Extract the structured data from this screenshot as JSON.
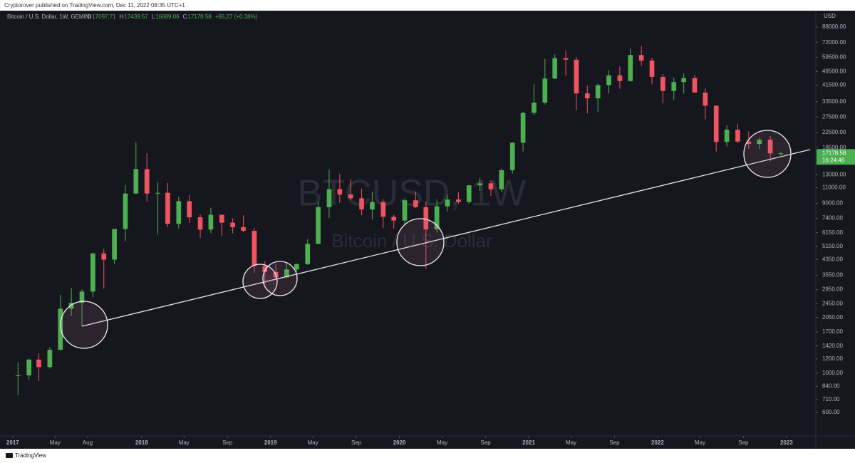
{
  "header": {
    "publisher": "Cryptorover published on TradingView.com, Dec 11, 2022 08:35 UTC+1"
  },
  "legend": {
    "symbol": "Bitcoin / U.S. Dollar, 1W, GEMINI",
    "ohlc": [
      {
        "key": "O",
        "value": "17097.71"
      },
      {
        "key": "H",
        "value": "17439.57"
      },
      {
        "key": "L",
        "value": "16689.06"
      },
      {
        "key": "C",
        "value": "17178.58"
      }
    ],
    "change": "+65.27 (+0.38%)"
  },
  "watermark": {
    "ticker": "BTCUSD, 1W",
    "name": "Bitcoin / U.S. Dollar"
  },
  "footer": {
    "brand": "TradingView"
  },
  "chart_data": {
    "type": "candlestick",
    "y_unit": "USD",
    "log_scale": true,
    "up_color": "#4caf50",
    "down_color": "#f05361",
    "x": [
      "2017-01",
      "2017-02",
      "2017-03",
      "2017-04",
      "2017-05",
      "2017-06",
      "2017-07",
      "2017-08",
      "2017-09",
      "2017-10",
      "2017-11",
      "2017-12",
      "2018-01",
      "2018-02",
      "2018-03",
      "2018-04",
      "2018-05",
      "2018-06",
      "2018-07",
      "2018-08",
      "2018-09",
      "2018-10",
      "2018-11",
      "2018-12",
      "2019-01",
      "2019-02",
      "2019-03",
      "2019-04",
      "2019-05",
      "2019-06",
      "2019-07",
      "2019-08",
      "2019-09",
      "2019-10",
      "2019-11",
      "2019-12",
      "2020-01",
      "2020-02",
      "2020-03",
      "2020-04",
      "2020-05",
      "2020-06",
      "2020-07",
      "2020-08",
      "2020-09",
      "2020-10",
      "2020-11",
      "2020-12",
      "2021-01",
      "2021-02",
      "2021-03",
      "2021-04",
      "2021-05",
      "2021-06",
      "2021-07",
      "2021-08",
      "2021-09",
      "2021-10",
      "2021-11",
      "2021-12",
      "2022-01",
      "2022-02",
      "2022-03",
      "2022-04",
      "2022-05",
      "2022-06",
      "2022-07",
      "2022-08",
      "2022-09",
      "2022-10",
      "2022-11",
      "2022-12"
    ],
    "open": [
      963,
      970,
      1190,
      1080,
      1350,
      2300,
      2480,
      2870,
      4700,
      4340,
      6450,
      10200,
      14000,
      10200,
      10300,
      6900,
      9250,
      7500,
      6400,
      7750,
      7000,
      6600,
      6300,
      4000,
      3700,
      3450,
      3820,
      4100,
      5320,
      8560,
      10800,
      10080,
      9600,
      8300,
      9150,
      7550,
      7200,
      9350,
      8550,
      6420,
      8650,
      9450,
      9150,
      11350,
      11650,
      10780,
      13800,
      19700,
      29000,
      33100,
      45200,
      58800,
      57700,
      37300,
      35000,
      41500,
      47100,
      43800,
      61300,
      57000,
      46200,
      38500,
      43200,
      45500,
      37700,
      31800,
      19900,
      23300,
      20000,
      19400,
      20500,
      17150
    ],
    "high": [
      1150,
      1200,
      1290,
      1400,
      2750,
      3000,
      2950,
      4750,
      4980,
      6450,
      11400,
      19800,
      17200,
      11800,
      11700,
      9800,
      10000,
      7800,
      8500,
      7760,
      7400,
      7700,
      6550,
      4250,
      4100,
      4200,
      4120,
      5650,
      9100,
      13900,
      13200,
      12300,
      10900,
      10400,
      9500,
      7750,
      9600,
      10500,
      9200,
      9450,
      10050,
      10400,
      11450,
      12500,
      12100,
      14100,
      19800,
      29300,
      41900,
      58300,
      61800,
      64900,
      59600,
      41300,
      42300,
      50500,
      52900,
      67000,
      69000,
      59100,
      47900,
      45800,
      48200,
      47400,
      39900,
      31900,
      24700,
      25200,
      22800,
      21000,
      21500,
      17440
    ],
    "low": [
      750,
      920,
      900,
      1060,
      1350,
      2100,
      1830,
      2670,
      2980,
      4110,
      5500,
      10400,
      9200,
      6000,
      6600,
      6500,
      7000,
      5750,
      6100,
      5880,
      6100,
      6200,
      3650,
      3150,
      3350,
      3400,
      3700,
      4050,
      5300,
      7450,
      9050,
      9400,
      7700,
      7300,
      6550,
      6450,
      6850,
      8450,
      3850,
      6150,
      8100,
      8900,
      8950,
      10550,
      9900,
      10400,
      13200,
      17600,
      28100,
      32300,
      45000,
      47000,
      30000,
      28800,
      29300,
      37300,
      39600,
      43300,
      53300,
      42000,
      32900,
      34300,
      37200,
      37600,
      26700,
      17600,
      18800,
      19600,
      18200,
      18200,
      15500,
      16700
    ],
    "close": [
      970,
      1190,
      1080,
      1350,
      2300,
      2480,
      2870,
      4700,
      4340,
      6450,
      10200,
      14000,
      10200,
      10300,
      6900,
      9250,
      7500,
      6400,
      7750,
      7000,
      6600,
      6300,
      4000,
      3700,
      3450,
      3820,
      4100,
      5320,
      8560,
      10800,
      10080,
      9600,
      8300,
      9150,
      7550,
      7200,
      9350,
      8550,
      6420,
      8650,
      9450,
      9150,
      11350,
      11650,
      10780,
      13800,
      19700,
      29000,
      33100,
      45200,
      58800,
      57700,
      37300,
      35000,
      41500,
      47100,
      43800,
      61300,
      57000,
      46200,
      38500,
      43200,
      45500,
      37700,
      31800,
      19900,
      23300,
      20000,
      19400,
      20500,
      17150,
      17178.58
    ],
    "xlim": [
      "2016-11-26",
      "2023-03-25"
    ],
    "xticks": [
      {
        "value": "2017-01-01",
        "label": "2017"
      },
      {
        "value": "2017-05-01",
        "label": "May"
      },
      {
        "value": "2017-08-01",
        "label": "Aug"
      },
      {
        "value": "2018-01-01",
        "label": "2018"
      },
      {
        "value": "2018-05-01",
        "label": "May"
      },
      {
        "value": "2018-09-01",
        "label": "Sep"
      },
      {
        "value": "2019-01-01",
        "label": "2019"
      },
      {
        "value": "2019-05-01",
        "label": "May"
      },
      {
        "value": "2019-09-01",
        "label": "Sep"
      },
      {
        "value": "2020-01-01",
        "label": "2020"
      },
      {
        "value": "2020-05-01",
        "label": "May"
      },
      {
        "value": "2020-09-01",
        "label": "Sep"
      },
      {
        "value": "2021-01-01",
        "label": "2021"
      },
      {
        "value": "2021-05-01",
        "label": "May"
      },
      {
        "value": "2021-09-01",
        "label": "Sep"
      },
      {
        "value": "2022-01-01",
        "label": "2022"
      },
      {
        "value": "2022-05-01",
        "label": "May"
      },
      {
        "value": "2022-09-01",
        "label": "Sep"
      },
      {
        "value": "2023-01-01",
        "label": "2023"
      }
    ],
    "ylim": [
      443,
      109800
    ],
    "yticks": [
      {
        "value": 88000,
        "label": "88000.00"
      },
      {
        "value": 72000,
        "label": "72000.00"
      },
      {
        "value": 59500,
        "label": "59500.00"
      },
      {
        "value": 49500,
        "label": "49500.00"
      },
      {
        "value": 41500,
        "label": "41500.00"
      },
      {
        "value": 33500,
        "label": "33500.00"
      },
      {
        "value": 27500,
        "label": "27500.00"
      },
      {
        "value": 22500,
        "label": "22500.00"
      },
      {
        "value": 18500,
        "label": "18500.00"
      },
      {
        "value": 13000,
        "label": "13000.00"
      },
      {
        "value": 11000,
        "label": "11000.00"
      },
      {
        "value": 9000,
        "label": "9000.00"
      },
      {
        "value": 7400,
        "label": "7400.00"
      },
      {
        "value": 6150,
        "label": "6150.00"
      },
      {
        "value": 5150,
        "label": "5150.00"
      },
      {
        "value": 4350,
        "label": "4350.00"
      },
      {
        "value": 3550,
        "label": "3550.00"
      },
      {
        "value": 2950,
        "label": "2950.00"
      },
      {
        "value": 2450,
        "label": "2450.00"
      },
      {
        "value": 2050,
        "label": "2050.00"
      },
      {
        "value": 1700,
        "label": "1700.00"
      },
      {
        "value": 1420,
        "label": "1420.00"
      },
      {
        "value": 1200,
        "label": "1200.00"
      },
      {
        "value": 1000,
        "label": "1000.00"
      },
      {
        "value": 840,
        "label": "840.00"
      },
      {
        "value": 710,
        "label": "710.00"
      },
      {
        "value": 600,
        "label": "600.00"
      }
    ],
    "last_price": {
      "value": 17178.58,
      "label": "17178.58",
      "countdown": "16:24:46"
    }
  }
}
